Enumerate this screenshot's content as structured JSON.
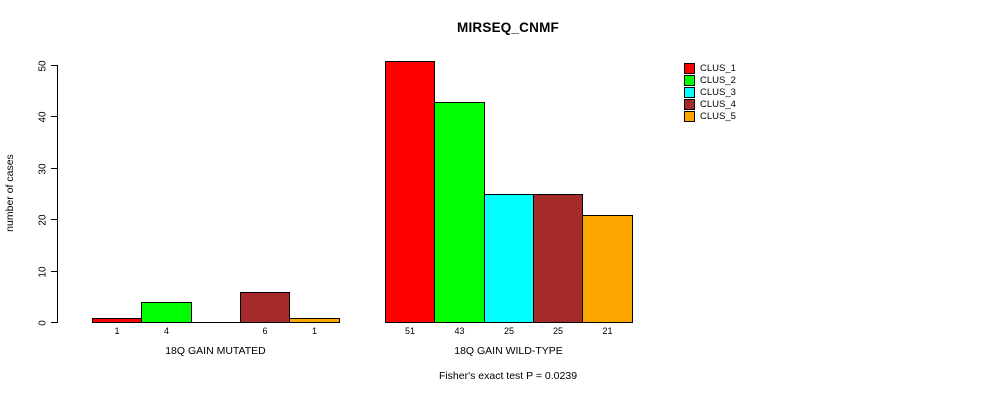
{
  "chart_data": {
    "type": "bar",
    "title": "MIRSEQ_CNMF",
    "ylabel": "number of cases",
    "xlabel": "",
    "ylim": [
      0,
      50
    ],
    "yticks": [
      0,
      10,
      20,
      30,
      40,
      50
    ],
    "grid": false,
    "legend_position": "right",
    "categories": [
      "18Q GAIN MUTATED",
      "18Q GAIN WILD-TYPE"
    ],
    "series": [
      {
        "name": "CLUS_1",
        "color": "#FF0000",
        "values": [
          1,
          51
        ]
      },
      {
        "name": "CLUS_2",
        "color": "#00FF00",
        "values": [
          4,
          43
        ]
      },
      {
        "name": "CLUS_3",
        "color": "#00FFFF",
        "values": [
          0,
          25
        ]
      },
      {
        "name": "CLUS_4",
        "color": "#A52A2A",
        "values": [
          6,
          25
        ]
      },
      {
        "name": "CLUS_5",
        "color": "#FFA500",
        "values": [
          1,
          21
        ]
      }
    ],
    "groups": [
      {
        "label": "18Q GAIN MUTATED",
        "values": [
          1,
          4,
          0,
          6,
          1
        ],
        "value_labels": [
          "1",
          "4",
          "",
          "6",
          "1"
        ]
      },
      {
        "label": "18Q GAIN WILD-TYPE",
        "values": [
          51,
          43,
          25,
          25,
          21
        ],
        "value_labels": [
          "51",
          "43",
          "25",
          "25",
          "21"
        ]
      }
    ],
    "legend": [
      "CLUS_1",
      "CLUS_2",
      "CLUS_3",
      "CLUS_4",
      "CLUS_5"
    ],
    "footer": "Fisher's exact test P = 0.0239"
  }
}
